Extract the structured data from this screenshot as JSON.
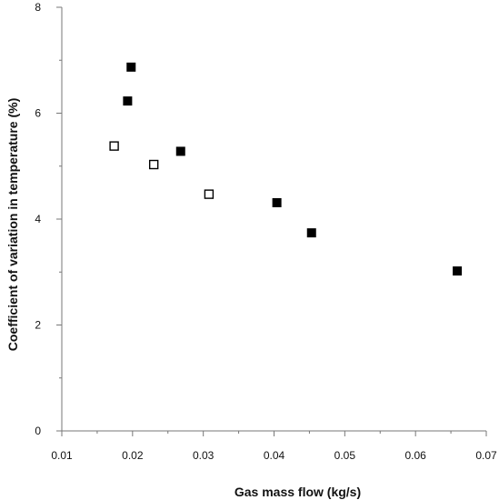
{
  "chart_data": {
    "type": "scatter",
    "xlabel": "Gas mass flow (kg/s)",
    "ylabel": "Coefficient of variation in temperature (%)",
    "xlim": [
      0.01,
      0.07
    ],
    "ylim": [
      0,
      8
    ],
    "x_ticks": [
      "0.01",
      "0.02",
      "0.03",
      "0.04",
      "0.05",
      "0.06",
      "0.07"
    ],
    "y_ticks": [
      "0",
      "2",
      "4",
      "6",
      "8"
    ],
    "grid": false,
    "legend": "none",
    "series": [
      {
        "marker": "filled-square",
        "color": "#000000",
        "points": [
          {
            "x": 0.0198,
            "y": 6.87
          },
          {
            "x": 0.0193,
            "y": 6.23
          },
          {
            "x": 0.0268,
            "y": 5.28
          },
          {
            "x": 0.0404,
            "y": 4.31
          },
          {
            "x": 0.0453,
            "y": 3.74
          },
          {
            "x": 0.0659,
            "y": 3.02
          }
        ]
      },
      {
        "marker": "open-square",
        "color": "#000000",
        "points": [
          {
            "x": 0.0174,
            "y": 5.38
          },
          {
            "x": 0.023,
            "y": 5.03
          },
          {
            "x": 0.0308,
            "y": 4.47
          }
        ]
      }
    ]
  }
}
